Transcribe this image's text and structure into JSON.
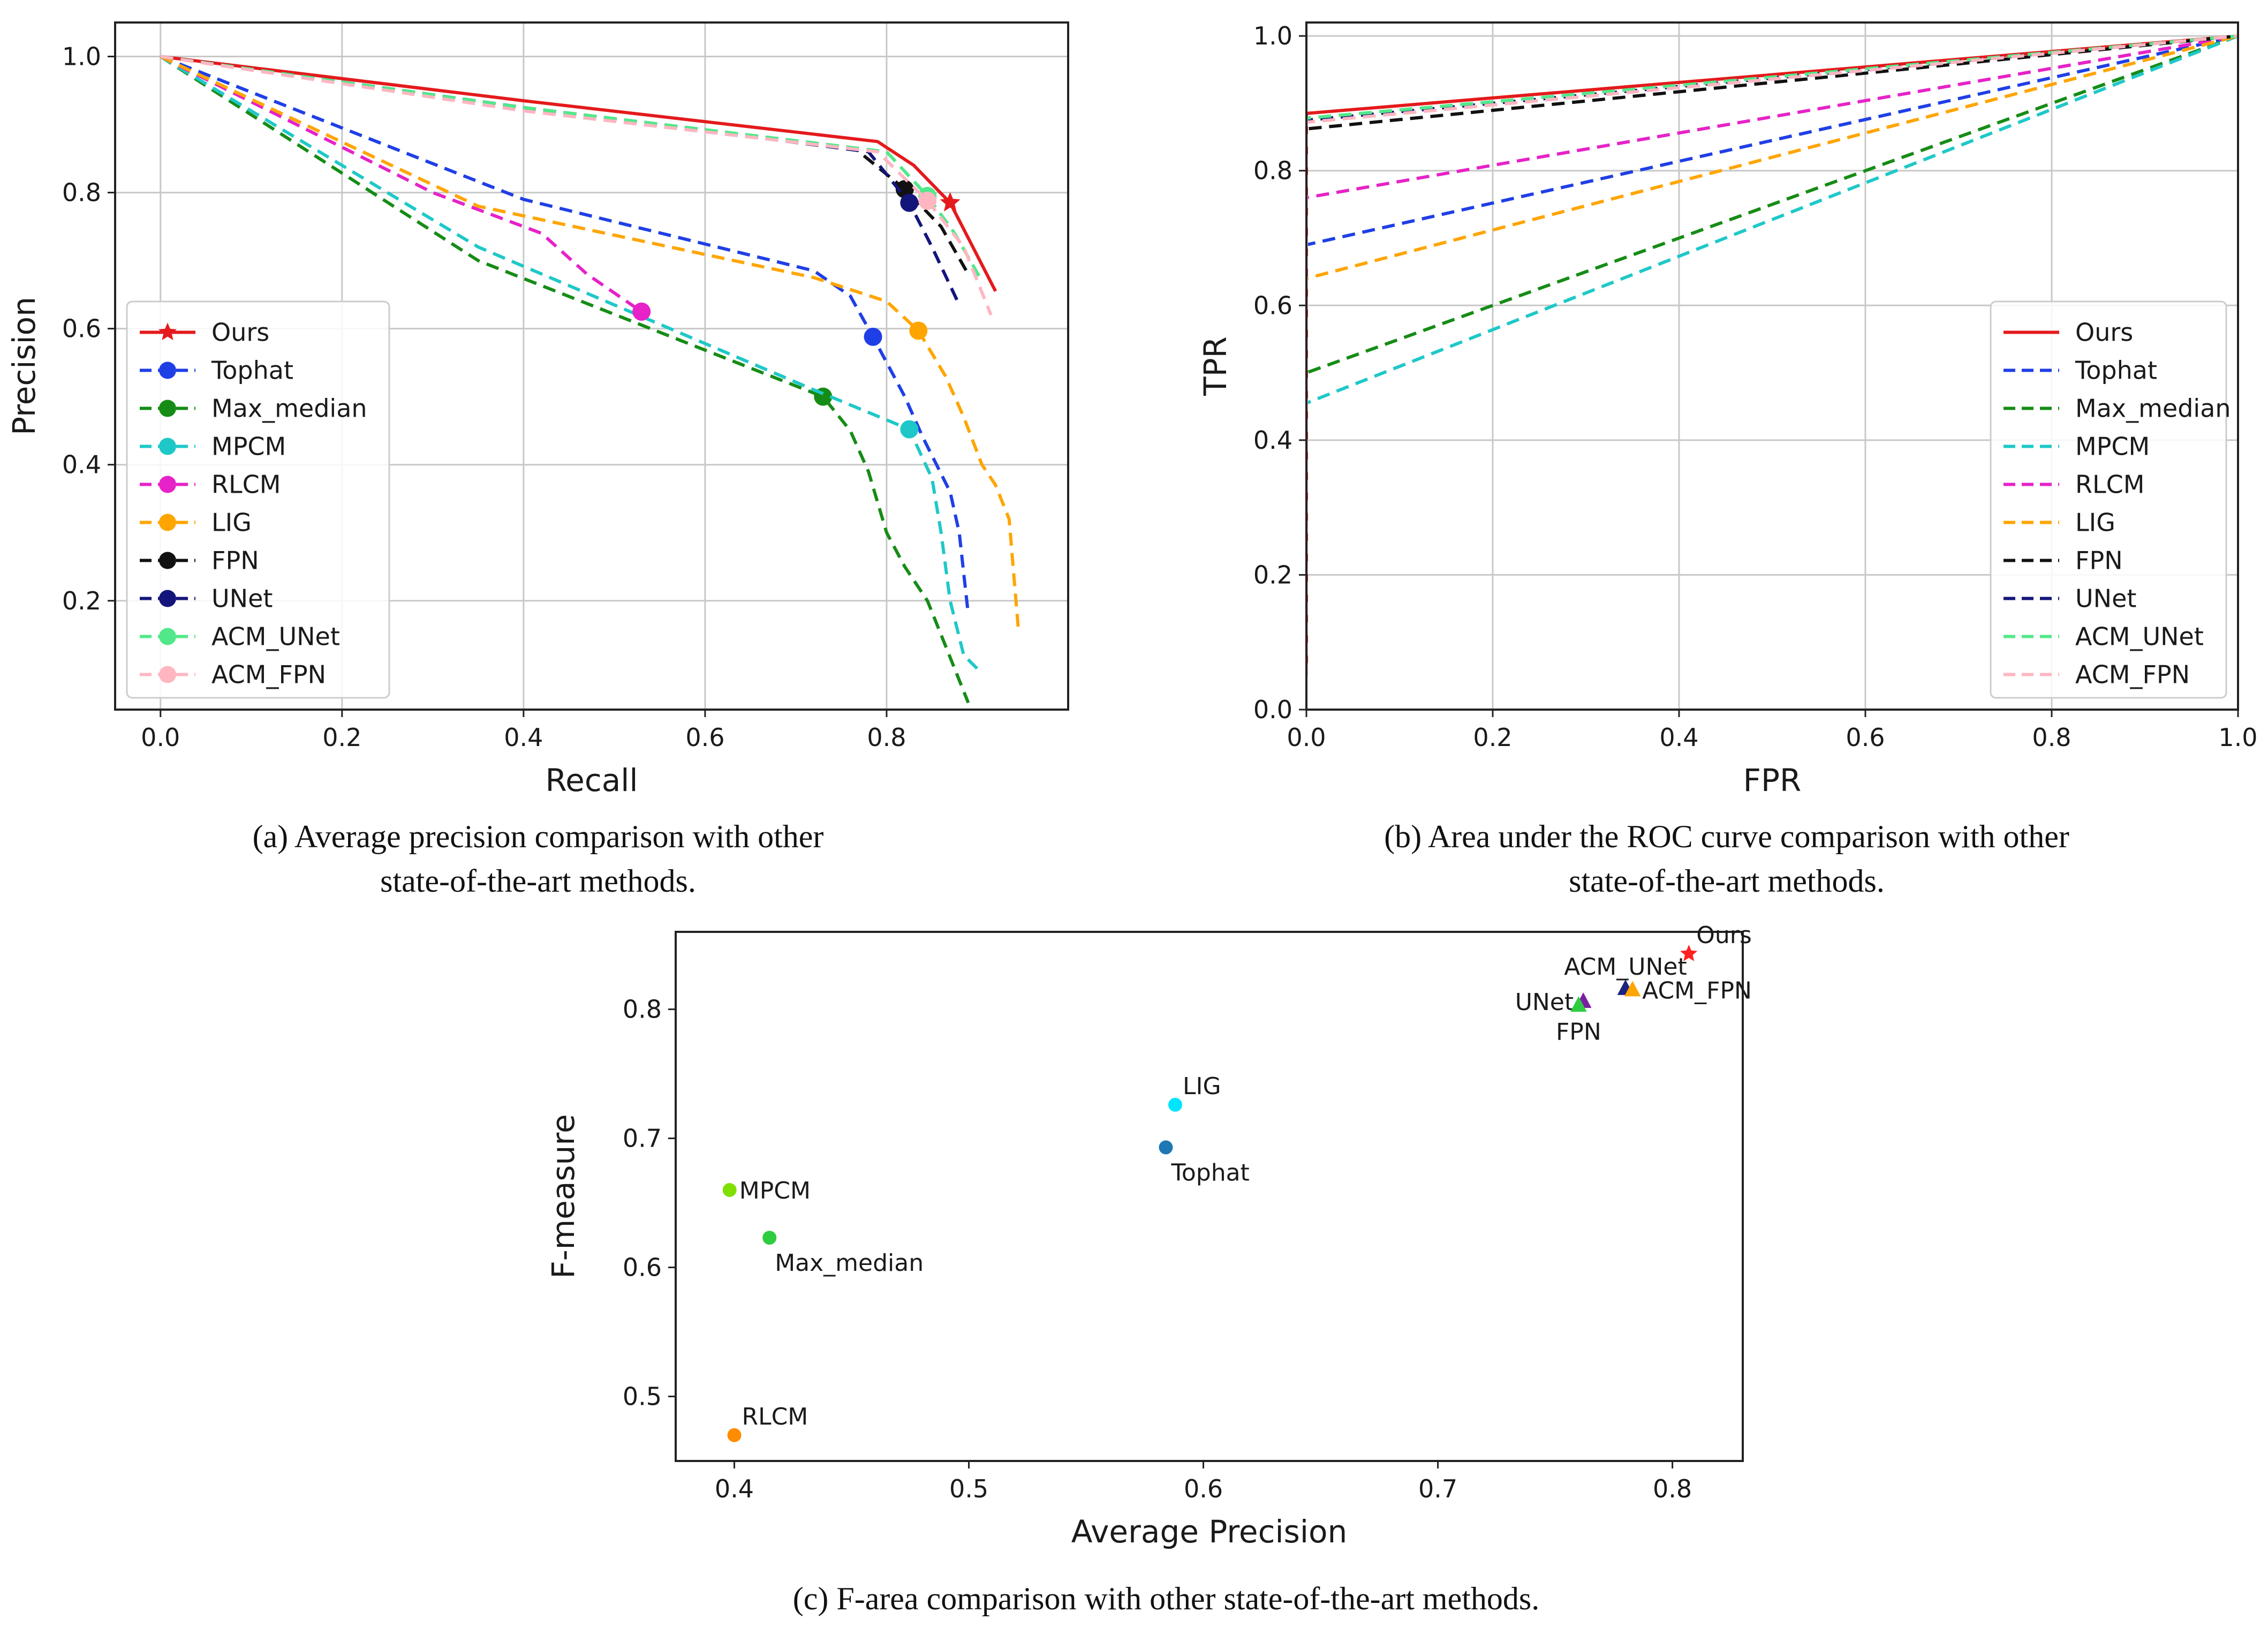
{
  "captions": {
    "a_line1": "(a) Average precision comparison with other",
    "a_line2": "state-of-the-art methods.",
    "b_line1": "(b) Area under the ROC curve comparison with other",
    "b_line2": "state-of-the-art methods.",
    "c_line1": "(c) F-area comparison with other state-of-the-art methods."
  },
  "chart_data": [
    {
      "id": "pr",
      "type": "line",
      "title": "",
      "xlabel": "Recall",
      "ylabel": "Precision",
      "xlim": [
        -0.05,
        1.0
      ],
      "ylim": [
        0.04,
        1.05
      ],
      "xticks": [
        "0.0",
        "0.2",
        "0.4",
        "0.6",
        "0.8"
      ],
      "xtick_values": [
        0.0,
        0.2,
        0.4,
        0.6,
        0.8
      ],
      "yticks": [
        "0.2",
        "0.4",
        "0.6",
        "0.8",
        "1.0"
      ],
      "ytick_values": [
        0.2,
        0.4,
        0.6,
        0.8,
        1.0
      ],
      "grid": true,
      "legend_position": "lower-left",
      "series": [
        {
          "name": "Ours",
          "color": "#e41a1c",
          "dash": "solid",
          "marker": "star",
          "marker_point": [
            0.87,
            0.785
          ],
          "points": [
            [
              0.0,
              1.0
            ],
            [
              0.4,
              0.935
            ],
            [
              0.79,
              0.875
            ],
            [
              0.83,
              0.84
            ],
            [
              0.87,
              0.785
            ],
            [
              0.92,
              0.655
            ]
          ]
        },
        {
          "name": "Tophat",
          "color": "#1f3fe6",
          "dash": "dashed",
          "marker": "circle",
          "marker_point": [
            0.785,
            0.588
          ],
          "points": [
            [
              0.0,
              1.0
            ],
            [
              0.4,
              0.79
            ],
            [
              0.72,
              0.685
            ],
            [
              0.76,
              0.648
            ],
            [
              0.785,
              0.588
            ],
            [
              0.82,
              0.5
            ],
            [
              0.84,
              0.44
            ],
            [
              0.855,
              0.4
            ],
            [
              0.87,
              0.36
            ],
            [
              0.88,
              0.3
            ],
            [
              0.885,
              0.24
            ],
            [
              0.89,
              0.18
            ]
          ]
        },
        {
          "name": "Max_median",
          "color": "#168c16",
          "dash": "dashed",
          "marker": "circle",
          "marker_point": [
            0.73,
            0.5
          ],
          "points": [
            [
              0.0,
              1.0
            ],
            [
              0.35,
              0.7
            ],
            [
              0.73,
              0.5
            ],
            [
              0.76,
              0.45
            ],
            [
              0.78,
              0.39
            ],
            [
              0.8,
              0.3
            ],
            [
              0.82,
              0.25
            ],
            [
              0.845,
              0.2
            ],
            [
              0.86,
              0.15
            ],
            [
              0.875,
              0.1
            ],
            [
              0.89,
              0.05
            ]
          ]
        },
        {
          "name": "MPCM",
          "color": "#1fc8c8",
          "dash": "dashed",
          "marker": "circle",
          "marker_point": [
            0.825,
            0.452
          ],
          "points": [
            [
              0.0,
              1.0
            ],
            [
              0.35,
              0.72
            ],
            [
              0.72,
              0.51
            ],
            [
              0.825,
              0.452
            ],
            [
              0.85,
              0.38
            ],
            [
              0.86,
              0.3
            ],
            [
              0.87,
              0.2
            ],
            [
              0.885,
              0.12
            ],
            [
              0.9,
              0.1
            ]
          ]
        },
        {
          "name": "RLCM",
          "color": "#e622c8",
          "dash": "dashed",
          "marker": "circle",
          "marker_point": [
            0.53,
            0.625
          ],
          "points": [
            [
              0.0,
              1.0
            ],
            [
              0.3,
              0.8
            ],
            [
              0.42,
              0.74
            ],
            [
              0.47,
              0.68
            ],
            [
              0.53,
              0.625
            ]
          ]
        },
        {
          "name": "LIG",
          "color": "#ffa500",
          "dash": "dashed",
          "marker": "circle",
          "marker_point": [
            0.835,
            0.597
          ],
          "points": [
            [
              0.0,
              1.0
            ],
            [
              0.35,
              0.78
            ],
            [
              0.72,
              0.675
            ],
            [
              0.8,
              0.64
            ],
            [
              0.835,
              0.597
            ],
            [
              0.865,
              0.53
            ],
            [
              0.885,
              0.47
            ],
            [
              0.905,
              0.4
            ],
            [
              0.92,
              0.37
            ],
            [
              0.935,
              0.32
            ],
            [
              0.945,
              0.16
            ]
          ]
        },
        {
          "name": "FPN",
          "color": "#111111",
          "dash": "dashed",
          "marker": "circle",
          "marker_point": [
            0.82,
            0.805
          ],
          "points": [
            [
              0.0,
              1.0
            ],
            [
              0.4,
              0.925
            ],
            [
              0.765,
              0.865
            ],
            [
              0.82,
              0.805
            ],
            [
              0.86,
              0.75
            ],
            [
              0.89,
              0.68
            ]
          ]
        },
        {
          "name": "UNet",
          "color": "#14157a",
          "dash": "dashed",
          "marker": "circle",
          "marker_point": [
            0.825,
            0.785
          ],
          "points": [
            [
              0.0,
              1.0
            ],
            [
              0.4,
              0.925
            ],
            [
              0.78,
              0.86
            ],
            [
              0.825,
              0.785
            ],
            [
              0.85,
              0.72
            ],
            [
              0.88,
              0.635
            ]
          ]
        },
        {
          "name": "ACM_UNet",
          "color": "#52e88a",
          "dash": "dashed",
          "marker": "circle",
          "marker_point": [
            0.845,
            0.795
          ],
          "points": [
            [
              0.0,
              1.0
            ],
            [
              0.4,
              0.925
            ],
            [
              0.8,
              0.86
            ],
            [
              0.845,
              0.795
            ],
            [
              0.875,
              0.74
            ],
            [
              0.905,
              0.67
            ]
          ]
        },
        {
          "name": "ACM_FPN",
          "color": "#ffb6c1",
          "dash": "dashed",
          "marker": "circle",
          "marker_point": [
            0.845,
            0.788
          ],
          "points": [
            [
              0.0,
              1.0
            ],
            [
              0.4,
              0.92
            ],
            [
              0.79,
              0.86
            ],
            [
              0.845,
              0.788
            ],
            [
              0.885,
              0.72
            ],
            [
              0.915,
              0.62
            ]
          ]
        }
      ]
    },
    {
      "id": "roc",
      "type": "line",
      "title": "",
      "xlabel": "FPR",
      "ylabel": "TPR",
      "xlim": [
        0.0,
        1.0
      ],
      "ylim": [
        0.0,
        1.02
      ],
      "xticks": [
        "0.0",
        "0.2",
        "0.4",
        "0.6",
        "0.8",
        "1.0"
      ],
      "xtick_values": [
        0.0,
        0.2,
        0.4,
        0.6,
        0.8,
        1.0
      ],
      "yticks": [
        "0.0",
        "0.2",
        "0.4",
        "0.6",
        "0.8",
        "1.0"
      ],
      "ytick_values": [
        0.0,
        0.2,
        0.4,
        0.6,
        0.8,
        1.0
      ],
      "grid": true,
      "legend_position": "lower-right",
      "series": [
        {
          "name": "Ours",
          "color": "#e41a1c",
          "dash": "solid",
          "points": [
            [
              0,
              0.05
            ],
            [
              0,
              0.885
            ],
            [
              1,
              1
            ]
          ]
        },
        {
          "name": "Tophat",
          "color": "#1f3fe6",
          "dash": "dashed",
          "points": [
            [
              0,
              0.05
            ],
            [
              0,
              0.69
            ],
            [
              1,
              1
            ]
          ]
        },
        {
          "name": "Max_median",
          "color": "#168c16",
          "dash": "dashed",
          "points": [
            [
              0,
              0.05
            ],
            [
              0,
              0.5
            ],
            [
              1,
              1
            ]
          ]
        },
        {
          "name": "MPCM",
          "color": "#1fc8c8",
          "dash": "dashed",
          "points": [
            [
              0,
              0.05
            ],
            [
              0,
              0.455
            ],
            [
              1,
              1
            ]
          ]
        },
        {
          "name": "RLCM",
          "color": "#e622c8",
          "dash": "dashed",
          "points": [
            [
              0,
              0.05
            ],
            [
              0,
              0.76
            ],
            [
              1,
              1
            ]
          ]
        },
        {
          "name": "LIG",
          "color": "#ffa500",
          "dash": "dashed",
          "points": [
            [
              0,
              0.05
            ],
            [
              0,
              0.64
            ],
            [
              1,
              1
            ]
          ]
        },
        {
          "name": "FPN",
          "color": "#111111",
          "dash": "dashed",
          "points": [
            [
              0,
              0.05
            ],
            [
              0,
              0.862
            ],
            [
              1,
              1
            ]
          ]
        },
        {
          "name": "UNet",
          "color": "#14157a",
          "dash": "dashed",
          "points": [
            [
              0,
              0.05
            ],
            [
              0,
              0.875
            ],
            [
              1,
              1
            ]
          ]
        },
        {
          "name": "ACM_UNet",
          "color": "#52e88a",
          "dash": "dashed",
          "points": [
            [
              0,
              0.05
            ],
            [
              0,
              0.878
            ],
            [
              1,
              1
            ]
          ]
        },
        {
          "name": "ACM_FPN",
          "color": "#ffb6c1",
          "dash": "dashed",
          "points": [
            [
              0,
              0.05
            ],
            [
              0,
              0.872
            ],
            [
              1,
              1
            ]
          ]
        }
      ]
    },
    {
      "id": "farea",
      "type": "scatter",
      "title": "",
      "xlabel": "Average Precision",
      "ylabel": "F-measure",
      "xlim": [
        0.375,
        0.83
      ],
      "ylim": [
        0.45,
        0.86
      ],
      "xticks": [
        "0.4",
        "0.5",
        "0.6",
        "0.7",
        "0.8"
      ],
      "xtick_values": [
        0.4,
        0.5,
        0.6,
        0.7,
        0.8
      ],
      "yticks": [
        "0.5",
        "0.6",
        "0.7",
        "0.8"
      ],
      "ytick_values": [
        0.5,
        0.6,
        0.7,
        0.8
      ],
      "grid": false,
      "points": [
        {
          "label": "Ours",
          "x": 0.807,
          "y": 0.843,
          "color": "#ff2020",
          "marker": "star",
          "label_color": "#ff2020",
          "label_pos": "above-right"
        },
        {
          "label": "ACM_UNet",
          "x": 0.78,
          "y": 0.816,
          "color": "#1a237e",
          "marker": "triangle",
          "label_color": "#1a1a1a",
          "label_pos": "above"
        },
        {
          "label": "ACM_FPN",
          "x": 0.783,
          "y": 0.815,
          "color": "#ffa500",
          "marker": "triangle",
          "label_color": "#1a1a1a",
          "label_pos": "right"
        },
        {
          "label": "UNet",
          "x": 0.762,
          "y": 0.806,
          "color": "#7b1fa2",
          "marker": "triangle",
          "label_color": "#1a1a1a",
          "label_pos": "left"
        },
        {
          "label": "FPN",
          "x": 0.76,
          "y": 0.803,
          "color": "#2ecc40",
          "marker": "triangle",
          "label_color": "#1a1a1a",
          "label_pos": "below"
        },
        {
          "label": "LIG",
          "x": 0.588,
          "y": 0.726,
          "color": "#00e5ff",
          "marker": "circle",
          "label_color": "#1a1a1a",
          "label_pos": "above-right"
        },
        {
          "label": "Tophat",
          "x": 0.584,
          "y": 0.693,
          "color": "#1f77b4",
          "marker": "circle",
          "label_color": "#1a1a1a",
          "label_pos": "below-right"
        },
        {
          "label": "MPCM",
          "x": 0.398,
          "y": 0.66,
          "color": "#7fe000",
          "marker": "circle",
          "label_color": "#1a1a1a",
          "label_pos": "right"
        },
        {
          "label": "Max_median",
          "x": 0.415,
          "y": 0.623,
          "color": "#2ecc40",
          "marker": "circle",
          "label_color": "#1a1a1a",
          "label_pos": "below-right"
        },
        {
          "label": "RLCM",
          "x": 0.4,
          "y": 0.47,
          "color": "#ff8c00",
          "marker": "circle",
          "label_color": "#1a1a1a",
          "label_pos": "above-right"
        }
      ]
    }
  ]
}
